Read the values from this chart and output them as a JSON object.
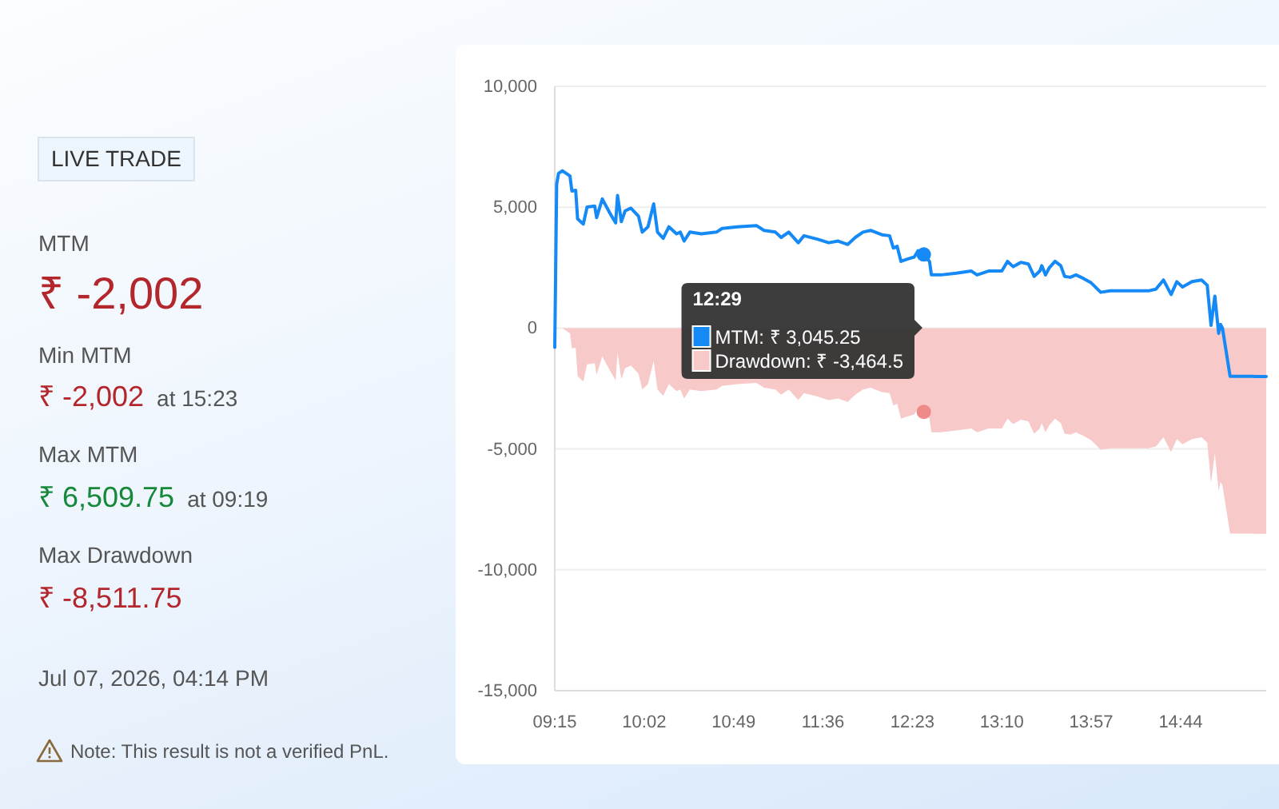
{
  "chart_data": [
    {
      "type": "other",
      "annotations": [
        "LIVE TRADE",
        "MTM",
        "₹ -2,002",
        "Min MTM",
        "₹ -2,002",
        "at 15:23",
        "Max MTM",
        "₹ 6,509.75",
        "at 09:19",
        "Max Drawdown",
        "₹ -8,511.75",
        "Jul 07, 2026, 04:14 PM",
        "Note: This result is not a verified PnL."
      ]
    },
    {
      "type": "line",
      "x": [
        9.25,
        9.2667,
        9.2833,
        9.3167,
        9.35,
        9.3833,
        9.4,
        9.4333,
        9.45,
        9.5,
        9.5333,
        9.6,
        9.6167,
        9.6667,
        9.7333,
        9.7833,
        9.8,
        9.8333,
        9.8667,
        9.9167,
        9.9833,
        10.0167,
        10.0667,
        10.1167,
        10.15,
        10.2,
        10.25,
        10.3167,
        10.35,
        10.3833,
        10.4333,
        10.5333,
        10.6667,
        10.7167,
        10.85,
        11.0167,
        11.0833,
        11.1833,
        11.2333,
        11.3,
        11.3833,
        11.4333,
        11.55,
        11.65,
        11.7333,
        11.8167,
        11.8833,
        11.95,
        12.0167,
        12.1167,
        12.1833,
        12.2167,
        12.25,
        12.2833,
        12.35,
        12.4,
        12.4333,
        12.4833,
        12.5333,
        12.55,
        12.6333,
        12.7667,
        12.9,
        12.95,
        13.05,
        13.1667,
        13.2167,
        13.2667,
        13.3333,
        13.4,
        13.45,
        13.5,
        13.5167,
        13.55,
        13.5833,
        13.6333,
        13.6833,
        13.7167,
        13.7667,
        13.8167,
        13.8833,
        13.95,
        14.0333,
        14.1167,
        14.2667,
        14.45,
        14.5167,
        14.5833,
        14.65,
        14.7,
        14.75,
        14.8333,
        14.9167,
        14.9667,
        15.0,
        15.0333,
        15.0667,
        15.0833,
        15.1,
        15.1667,
        15.3667,
        15.3833,
        15.4833
      ],
      "xlim": [
        9.25,
        15.4833
      ],
      "xticks": [
        {
          "value": 9.25,
          "label": "09:15"
        },
        {
          "value": 10.0333,
          "label": "10:02"
        },
        {
          "value": 10.8167,
          "label": "10:49"
        },
        {
          "value": 11.6,
          "label": "11:36"
        },
        {
          "value": 12.3833,
          "label": "12:23"
        },
        {
          "value": 13.1667,
          "label": "13:10"
        },
        {
          "value": 13.95,
          "label": "13:57"
        },
        {
          "value": 14.7333,
          "label": "14:44"
        }
      ],
      "ylim": [
        -15000,
        10000
      ],
      "yticks": [
        {
          "value": -15000,
          "label": "-15,000"
        },
        {
          "value": -10000,
          "label": "-10,000"
        },
        {
          "value": -5000,
          "label": "-5,000"
        },
        0,
        {
          "value": 5000,
          "label": "5,000"
        },
        {
          "value": 10000,
          "label": "10,000"
        }
      ],
      "grid": "y",
      "series": [
        {
          "type": "line",
          "color": "#1589f5",
          "values": [
            -800,
            5960,
            6400,
            6509.75,
            6400,
            6290,
            5670,
            5700,
            4520,
            4300,
            5010,
            5050,
            4570,
            5340,
            4750,
            4350,
            5490,
            4400,
            4850,
            4960,
            4630,
            3970,
            4190,
            5140,
            3970,
            3710,
            4190,
            3900,
            3970,
            3600,
            3970,
            3900,
            3970,
            4120,
            4190,
            4240,
            4040,
            3970,
            3750,
            3970,
            3530,
            3820,
            3680,
            3530,
            3600,
            3460,
            3750,
            3970,
            4040,
            3860,
            3820,
            3310,
            3380,
            2760,
            2870,
            2940,
            3200,
            3045.25,
            2760,
            2200,
            2200,
            2270,
            2360,
            2200,
            2360,
            2360,
            2760,
            2540,
            2720,
            2650,
            2140,
            2360,
            2580,
            2200,
            2500,
            2760,
            2580,
            2140,
            2100,
            2200,
            2050,
            1870,
            1480,
            1540,
            1540,
            1540,
            1610,
            1990,
            1390,
            1920,
            1700,
            1920,
            1990,
            1770,
            110,
            1320,
            -220,
            150,
            0,
            -1995,
            -1995,
            -2002,
            -2002
          ]
        },
        {
          "type": "area",
          "color": "#f7c9c9",
          "values": [
            0,
            0,
            0,
            0,
            -110,
            -220,
            -840,
            -810,
            -1990,
            -2210,
            -1500,
            -1460,
            -1940,
            -1170,
            -1760,
            -2160,
            -1020,
            -2110,
            -1660,
            -1550,
            -1880,
            -2540,
            -2320,
            -1370,
            -2540,
            -2800,
            -2320,
            -2610,
            -2540,
            -2910,
            -2540,
            -2610,
            -2540,
            -2390,
            -2320,
            -2270,
            -2470,
            -2540,
            -2760,
            -2540,
            -2980,
            -2690,
            -2830,
            -2980,
            -2910,
            -3050,
            -2760,
            -2540,
            -2470,
            -2650,
            -2690,
            -3200,
            -3130,
            -3750,
            -3640,
            -3570,
            -3310,
            -3464.5,
            -3750,
            -4310,
            -4310,
            -4240,
            -4150,
            -4310,
            -4150,
            -4150,
            -3750,
            -3970,
            -3790,
            -3860,
            -4370,
            -4150,
            -3930,
            -4310,
            -4010,
            -3750,
            -3930,
            -4370,
            -4410,
            -4310,
            -4460,
            -4640,
            -5030,
            -4970,
            -4970,
            -4970,
            -4900,
            -4520,
            -5120,
            -4590,
            -4810,
            -4590,
            -4520,
            -4740,
            -6400,
            -5190,
            -6730,
            -6360,
            -6510,
            -8505,
            -8505,
            -8511.75,
            -8511.75
          ]
        },
        {
          "type": "scatter",
          "marker": "circle",
          "color": "#1589f5",
          "x": [
            12.4833
          ],
          "values": [
            3045.25
          ]
        },
        {
          "type": "scatter",
          "marker": "circle",
          "color": "#ee8a8a",
          "x": [
            12.4833
          ],
          "values": [
            -3464.5
          ]
        }
      ],
      "annotations": [
        "12:29",
        "MTM: ₹ 3,045.25",
        "Drawdown: ₹ -3,464.5"
      ]
    }
  ]
}
